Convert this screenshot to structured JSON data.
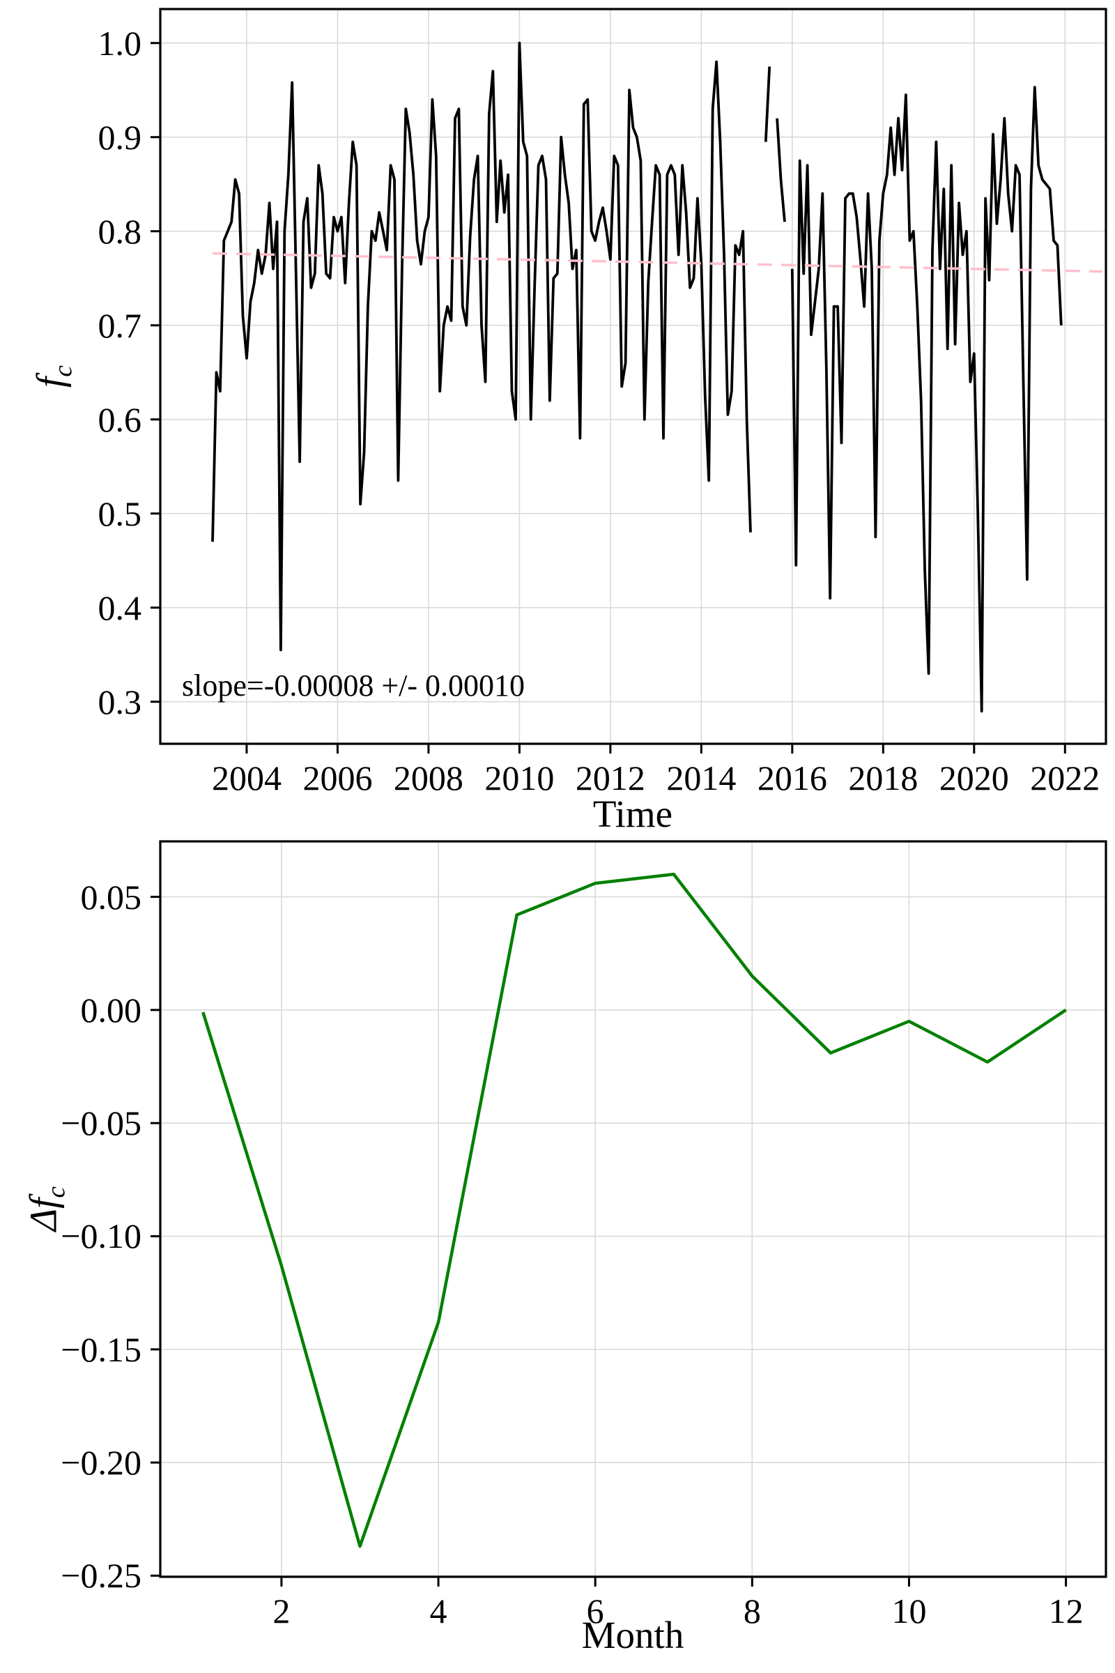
{
  "figure": {
    "background": "#ffffff",
    "grid_color": "#d9d9d9",
    "spine_color": "#000000"
  },
  "chart_data": [
    {
      "type": "line",
      "title": "",
      "xlabel": "Time",
      "ylabel": "f_c",
      "ylabel_rich": {
        "main": "f",
        "sub": "c"
      },
      "annotation": "slope=-0.00008 +/- 0.00010",
      "grid": true,
      "legend": "none",
      "xlim": [
        2002.1,
        2022.9
      ],
      "ylim": [
        0.2553,
        1.0361
      ],
      "xticks": [
        2004,
        2006,
        2008,
        2010,
        2012,
        2014,
        2016,
        2018,
        2020,
        2022
      ],
      "xtick_labels": [
        "2004",
        "2006",
        "2008",
        "2010",
        "2012",
        "2014",
        "2016",
        "2018",
        "2020",
        "2022"
      ],
      "yticks": [
        1.0,
        0.9,
        0.8,
        0.7,
        0.6,
        0.5,
        0.4,
        0.3
      ],
      "ytick_labels": [
        "1.0",
        "0.9",
        "0.8",
        "0.7",
        "0.6",
        "0.5",
        "0.4",
        "0.3"
      ],
      "series": [
        {
          "name": "fc-monthly",
          "color": "#000000",
          "style": "solid",
          "width": 3.8,
          "t0": 2003.25,
          "dt": 0.0833333,
          "values": [
            0.47,
            0.65,
            0.63,
            0.79,
            0.8,
            0.81,
            0.855,
            0.84,
            0.71,
            0.665,
            0.725,
            0.745,
            0.78,
            0.755,
            0.775,
            0.83,
            0.76,
            0.81,
            0.355,
            0.8,
            0.86,
            0.958,
            0.76,
            0.555,
            0.81,
            0.835,
            0.74,
            0.755,
            0.87,
            0.84,
            0.755,
            0.75,
            0.815,
            0.8,
            0.815,
            0.745,
            0.83,
            0.895,
            0.87,
            0.51,
            0.565,
            0.72,
            0.8,
            0.79,
            0.82,
            0.8,
            0.78,
            0.87,
            0.855,
            0.535,
            0.76,
            0.93,
            0.905,
            0.86,
            0.79,
            0.765,
            0.8,
            0.815,
            0.94,
            0.88,
            0.63,
            0.7,
            0.72,
            0.705,
            0.92,
            0.93,
            0.72,
            0.7,
            0.795,
            0.855,
            0.88,
            0.7,
            0.64,
            0.925,
            0.97,
            0.81,
            0.875,
            0.82,
            0.86,
            0.63,
            0.6,
            1.0,
            0.895,
            0.88,
            0.6,
            0.74,
            0.87,
            0.88,
            0.855,
            0.62,
            0.75,
            0.755,
            0.9,
            0.86,
            0.83,
            0.76,
            0.78,
            0.58,
            0.935,
            0.94,
            0.8,
            0.79,
            0.81,
            0.825,
            0.8,
            0.77,
            0.88,
            0.87,
            0.635,
            0.66,
            0.95,
            0.91,
            0.9,
            0.875,
            0.6,
            0.745,
            0.81,
            0.87,
            0.86,
            0.58,
            0.86,
            0.87,
            0.86,
            0.775,
            0.87,
            0.82,
            0.74,
            0.75,
            0.835,
            0.765,
            0.625,
            0.535,
            0.93,
            0.98,
            0.895,
            0.775,
            0.605,
            0.63,
            0.785,
            0.775,
            0.8,
            0.6,
            0.48,
            null,
            null,
            null,
            0.895,
            0.975,
            null,
            0.92,
            0.855,
            0.81,
            null,
            0.76,
            0.445,
            0.875,
            0.755,
            0.87,
            0.69,
            0.725,
            0.76,
            0.84,
            0.655,
            0.41,
            0.72,
            0.72,
            0.575,
            0.835,
            0.84,
            0.84,
            0.815,
            0.77,
            0.72,
            0.84,
            0.76,
            0.475,
            0.79,
            0.84,
            0.86,
            0.91,
            0.86,
            0.92,
            0.865,
            0.945,
            0.79,
            0.8,
            0.72,
            0.62,
            0.44,
            0.33,
            0.78,
            0.895,
            0.76,
            0.845,
            0.675,
            0.87,
            0.68,
            0.83,
            0.775,
            0.8,
            0.64,
            0.67,
            0.5,
            0.29,
            0.835,
            0.748,
            0.903,
            0.808,
            0.855,
            0.92,
            0.84,
            0.8,
            0.87,
            0.86,
            0.64,
            0.43,
            0.845,
            0.953,
            0.87,
            0.855,
            0.85,
            0.845,
            0.79,
            0.785,
            0.7
          ]
        },
        {
          "name": "linear-trend",
          "color": "#ffc0cb",
          "style": "dashed",
          "width": 3.5,
          "points": [
            [
              2003.25,
              0.7765
            ],
            [
              2022.82,
              0.7572
            ]
          ]
        }
      ]
    },
    {
      "type": "line",
      "title": "",
      "xlabel": "Month",
      "ylabel": "Δf_c",
      "ylabel_rich": {
        "main": "Δf",
        "sub": "c"
      },
      "annotation": "",
      "grid": true,
      "legend": "none",
      "xlim": [
        0.455,
        12.51
      ],
      "ylim": [
        -0.2505,
        0.0745
      ],
      "xticks": [
        2,
        4,
        6,
        8,
        10,
        12
      ],
      "xtick_labels": [
        "2",
        "4",
        "6",
        "8",
        "10",
        "12"
      ],
      "yticks": [
        0.05,
        0.0,
        -0.05,
        -0.1,
        -0.15,
        -0.2,
        -0.25
      ],
      "ytick_labels": [
        "0.05",
        "0.00",
        "−0.05",
        "−0.10",
        "−0.15",
        "−0.20",
        "−0.25"
      ],
      "series": [
        {
          "name": "delta-fc-by-month",
          "color": "#008000",
          "style": "solid",
          "width": 4.5,
          "x": [
            1,
            2,
            3,
            4,
            5,
            6,
            7,
            8,
            9,
            10,
            11,
            12
          ],
          "values": [
            -0.001,
            -0.113,
            -0.237,
            -0.138,
            0.042,
            0.056,
            0.06,
            0.015,
            -0.019,
            -0.005,
            -0.023,
            0.0
          ]
        }
      ]
    }
  ]
}
